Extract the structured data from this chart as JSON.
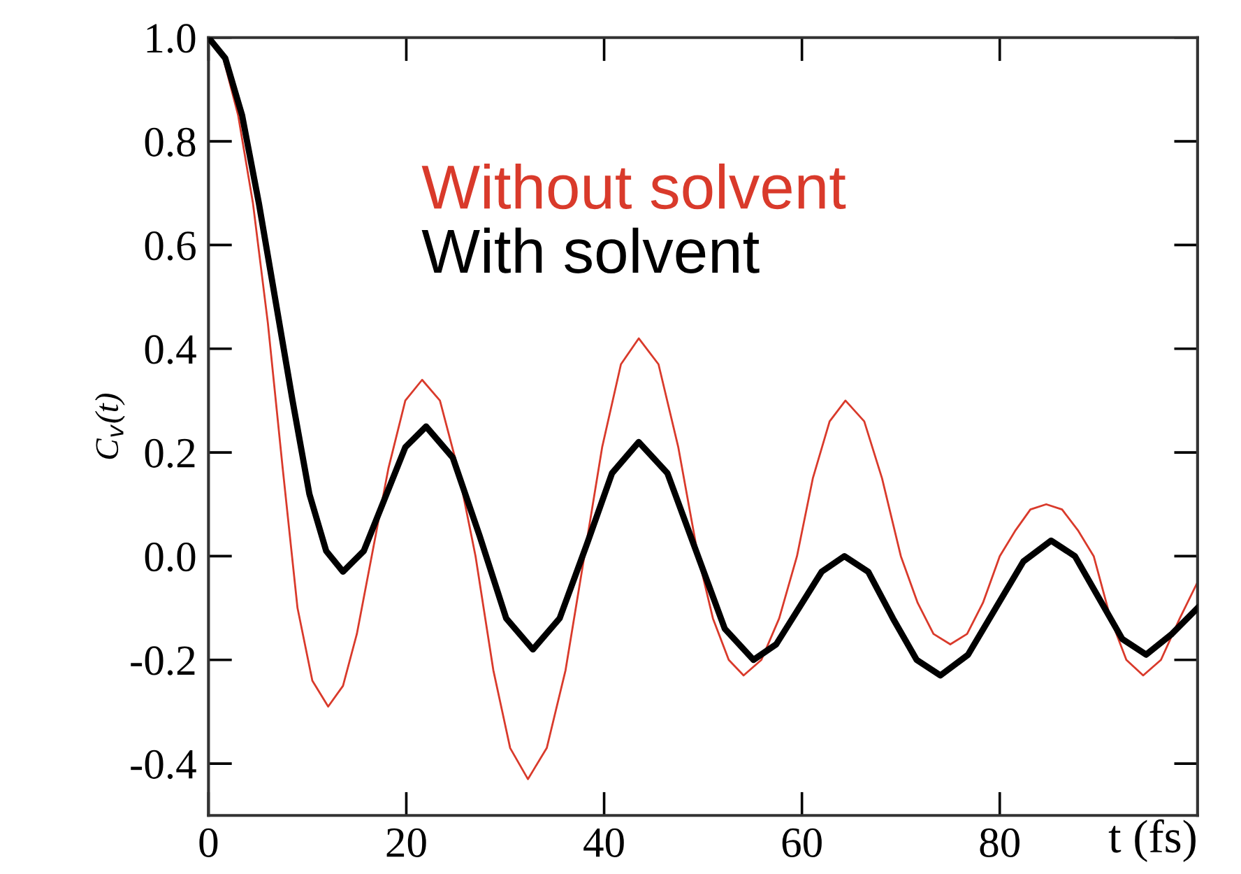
{
  "chart_data": {
    "type": "line",
    "xlabel": "t (fs)",
    "ylabel": "C$_{v}$(t)",
    "xlim": [
      0,
      100
    ],
    "ylim": [
      -0.5,
      1.0
    ],
    "xticks": [
      0,
      20,
      40,
      60,
      80
    ],
    "yticks": [
      {
        "value": 1.0,
        "label": "1.0"
      },
      {
        "value": 0.8,
        "label": "0.8"
      },
      {
        "value": 0.6,
        "label": "0.6"
      },
      {
        "value": 0.4,
        "label": "0.4"
      },
      {
        "value": 0.2,
        "label": "0.2"
      },
      {
        "value": 0.0,
        "label": "0.0"
      },
      {
        "value": -0.2,
        "label": "-0.2"
      },
      {
        "value": -0.4,
        "label": "-0.4"
      }
    ],
    "grid": false,
    "legend": "top",
    "marker": "none",
    "line_style": "solid",
    "series": [
      {
        "name": "Without solvent",
        "color": "#d93a2b",
        "x": [
          0,
          1.5,
          3,
          4.5,
          6,
          7.5,
          9,
          10.5,
          12.1,
          13.6,
          15,
          16.5,
          18.2,
          19.9,
          21.6,
          23.4,
          25.2,
          27,
          28.8,
          30.5,
          32.3,
          34.2,
          36.1,
          38,
          39.8,
          41.7,
          43.5,
          45.5,
          47.5,
          49.5,
          51,
          52.6,
          54.1,
          55.9,
          57.7,
          59.5,
          61.1,
          62.8,
          64.4,
          66.3,
          68.1,
          70,
          71.7,
          73.3,
          75,
          76.7,
          78.3,
          80,
          81.6,
          83.1,
          84.7,
          86.3,
          87.9,
          89.5,
          91.2,
          92.8,
          94.5,
          96.3,
          98.2,
          100
        ],
        "values": [
          1.0,
          0.96,
          0.85,
          0.68,
          0.45,
          0.17,
          -0.1,
          -0.24,
          -0.29,
          -0.25,
          -0.15,
          0.0,
          0.17,
          0.3,
          0.34,
          0.3,
          0.17,
          0.0,
          -0.22,
          -0.37,
          -0.43,
          -0.37,
          -0.22,
          0.0,
          0.21,
          0.37,
          0.42,
          0.37,
          0.21,
          0.0,
          -0.12,
          -0.2,
          -0.23,
          -0.2,
          -0.12,
          0.0,
          0.15,
          0.26,
          0.3,
          0.26,
          0.15,
          0.0,
          -0.09,
          -0.15,
          -0.17,
          -0.15,
          -0.09,
          0.0,
          0.05,
          0.09,
          0.1,
          0.09,
          0.05,
          0.0,
          -0.12,
          -0.2,
          -0.23,
          -0.2,
          -0.12,
          -0.05
        ]
      },
      {
        "name": "With solvent",
        "color": "#000000",
        "x": [
          0,
          1.7,
          3.4,
          5.1,
          6.8,
          8.5,
          10.2,
          11.9,
          13.6,
          15.7,
          17.8,
          19.9,
          22,
          24.7,
          27.4,
          30.1,
          32.8,
          35.5,
          38.2,
          40.8,
          43.5,
          46.4,
          49.3,
          52.2,
          55.1,
          57.4,
          59.7,
          62,
          64.3,
          66.7,
          69.2,
          71.6,
          74,
          76.8,
          79.6,
          82.4,
          85.2,
          87.6,
          90,
          92.4,
          94.8,
          97.4,
          100
        ],
        "values": [
          1.0,
          0.96,
          0.85,
          0.68,
          0.49,
          0.3,
          0.12,
          0.01,
          -0.03,
          0.01,
          0.11,
          0.21,
          0.25,
          0.19,
          0.04,
          -0.12,
          -0.18,
          -0.12,
          0.02,
          0.16,
          0.22,
          0.16,
          0.01,
          -0.14,
          -0.2,
          -0.17,
          -0.1,
          -0.03,
          0.0,
          -0.03,
          -0.12,
          -0.2,
          -0.23,
          -0.19,
          -0.1,
          -0.01,
          0.03,
          0.0,
          -0.08,
          -0.16,
          -0.19,
          -0.15,
          -0.1
        ]
      }
    ]
  }
}
